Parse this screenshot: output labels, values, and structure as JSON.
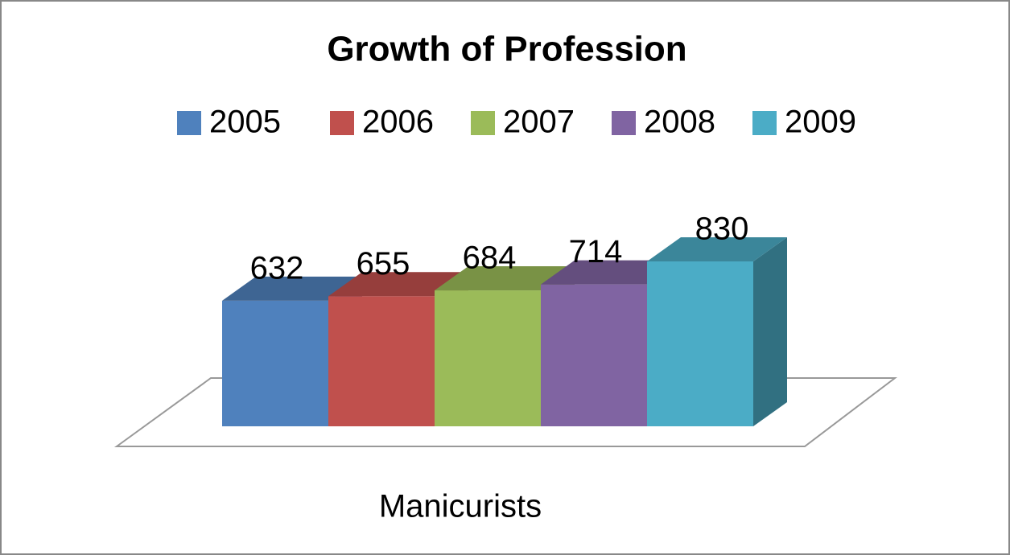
{
  "chart_data": {
    "type": "bar3d",
    "title": "Growth of Profession",
    "categories": [
      "Manicurists"
    ],
    "series": [
      {
        "name": "2005",
        "color": "#4f81bd",
        "values": [
          632
        ]
      },
      {
        "name": "2006",
        "color": "#c0504d",
        "values": [
          655
        ]
      },
      {
        "name": "2007",
        "color": "#9bbb59",
        "values": [
          684
        ]
      },
      {
        "name": "2008",
        "color": "#8064a2",
        "values": [
          714
        ]
      },
      {
        "name": "2009",
        "color": "#4bacc6",
        "values": [
          830
        ]
      }
    ],
    "legend": "top"
  }
}
